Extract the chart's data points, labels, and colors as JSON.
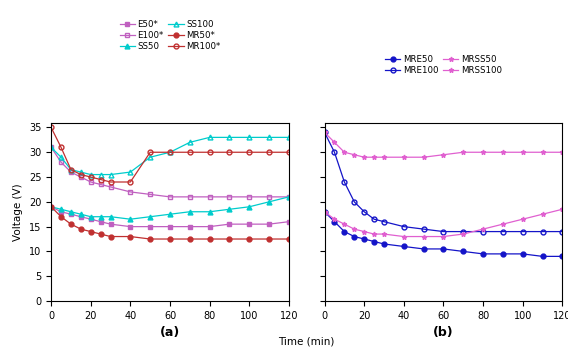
{
  "panel_a": {
    "E50": {
      "x": [
        0,
        5,
        10,
        15,
        20,
        25,
        30,
        40,
        50,
        60,
        70,
        80,
        90,
        100,
        110,
        120
      ],
      "y": [
        19,
        18,
        17.5,
        17,
        16.5,
        16,
        15.5,
        15,
        15,
        15,
        15,
        15,
        15.5,
        15.5,
        15.5,
        16
      ],
      "color": "#C060C0",
      "marker": "s",
      "fillstyle": "full",
      "label": "E50*"
    },
    "E100": {
      "x": [
        0,
        5,
        10,
        15,
        20,
        25,
        30,
        40,
        50,
        60,
        70,
        80,
        90,
        100,
        110,
        120
      ],
      "y": [
        31,
        28,
        26,
        25,
        24,
        23.5,
        23,
        22,
        21.5,
        21,
        21,
        21,
        21,
        21,
        21,
        21
      ],
      "color": "#C060C0",
      "marker": "s",
      "fillstyle": "none",
      "label": "E100*"
    },
    "SS50": {
      "x": [
        0,
        5,
        10,
        15,
        20,
        25,
        30,
        40,
        50,
        60,
        70,
        80,
        90,
        100,
        110,
        120
      ],
      "y": [
        19,
        18.5,
        18,
        17.5,
        17,
        17,
        17,
        16.5,
        17,
        17.5,
        18,
        18,
        18.5,
        19,
        20,
        21
      ],
      "color": "#00CCCC",
      "marker": "^",
      "fillstyle": "full",
      "label": "SS50"
    },
    "SS100": {
      "x": [
        0,
        5,
        10,
        15,
        20,
        25,
        30,
        40,
        50,
        60,
        70,
        80,
        90,
        100,
        110,
        120
      ],
      "y": [
        31,
        29,
        26.5,
        26,
        25.5,
        25.5,
        25.5,
        26,
        29,
        30,
        32,
        33,
        33,
        33,
        33,
        33
      ],
      "color": "#00CCCC",
      "marker": "^",
      "fillstyle": "none",
      "label": "SS100"
    },
    "MR50": {
      "x": [
        0,
        5,
        10,
        15,
        20,
        25,
        30,
        40,
        50,
        60,
        70,
        80,
        90,
        100,
        110,
        120
      ],
      "y": [
        19,
        17,
        15.5,
        14.5,
        14,
        13.5,
        13,
        13,
        12.5,
        12.5,
        12.5,
        12.5,
        12.5,
        12.5,
        12.5,
        12.5
      ],
      "color": "#C03030",
      "marker": "o",
      "fillstyle": "full",
      "label": "MR50*"
    },
    "MR100": {
      "x": [
        0,
        5,
        10,
        15,
        20,
        25,
        30,
        40,
        50,
        60,
        70,
        80,
        90,
        100,
        110,
        120
      ],
      "y": [
        35,
        31,
        26.5,
        25.5,
        25,
        24.5,
        24,
        24,
        30,
        30,
        30,
        30,
        30,
        30,
        30,
        30
      ],
      "color": "#C03030",
      "marker": "o",
      "fillstyle": "none",
      "label": "MR100*"
    }
  },
  "panel_b": {
    "MRE50": {
      "x": [
        0,
        5,
        10,
        15,
        20,
        25,
        30,
        40,
        50,
        60,
        70,
        80,
        90,
        100,
        110,
        120
      ],
      "y": [
        18,
        16,
        14,
        13,
        12.5,
        12,
        11.5,
        11,
        10.5,
        10.5,
        10,
        9.5,
        9.5,
        9.5,
        9,
        9
      ],
      "color": "#1414C8",
      "marker": "o",
      "fillstyle": "full",
      "label": "MRE50"
    },
    "MRE100": {
      "x": [
        0,
        5,
        10,
        15,
        20,
        25,
        30,
        40,
        50,
        60,
        70,
        80,
        90,
        100,
        110,
        120
      ],
      "y": [
        34,
        30,
        24,
        20,
        18,
        16.5,
        16,
        15,
        14.5,
        14,
        14,
        14,
        14,
        14,
        14,
        14
      ],
      "color": "#1414C8",
      "marker": "o",
      "fillstyle": "none",
      "label": "MRE100"
    },
    "MRSS50": {
      "x": [
        0,
        5,
        10,
        15,
        20,
        25,
        30,
        40,
        50,
        60,
        70,
        80,
        90,
        100,
        110,
        120
      ],
      "y": [
        18,
        16.5,
        15.5,
        14.5,
        14,
        13.5,
        13.5,
        13,
        13,
        13,
        13.5,
        14.5,
        15.5,
        16.5,
        17.5,
        18.5
      ],
      "color": "#E060D0",
      "marker": "*",
      "fillstyle": "full",
      "label": "MRSS50"
    },
    "MRSS100": {
      "x": [
        0,
        5,
        10,
        15,
        20,
        25,
        30,
        40,
        50,
        60,
        70,
        80,
        90,
        100,
        110,
        120
      ],
      "y": [
        34,
        32,
        30,
        29.5,
        29,
        29,
        29,
        29,
        29,
        29.5,
        30,
        30,
        30,
        30,
        30,
        30
      ],
      "color": "#E060D0",
      "marker": "*",
      "fillstyle": "full",
      "label": "MRSS100"
    }
  },
  "ylabel": "Voltage (V)",
  "xlabel": "Time (min)",
  "ylim": [
    0,
    36
  ],
  "xlim": [
    0,
    120
  ],
  "yticks": [
    0,
    5,
    10,
    15,
    20,
    25,
    30,
    35
  ],
  "xticks": [
    0,
    20,
    40,
    60,
    80,
    100,
    120
  ]
}
